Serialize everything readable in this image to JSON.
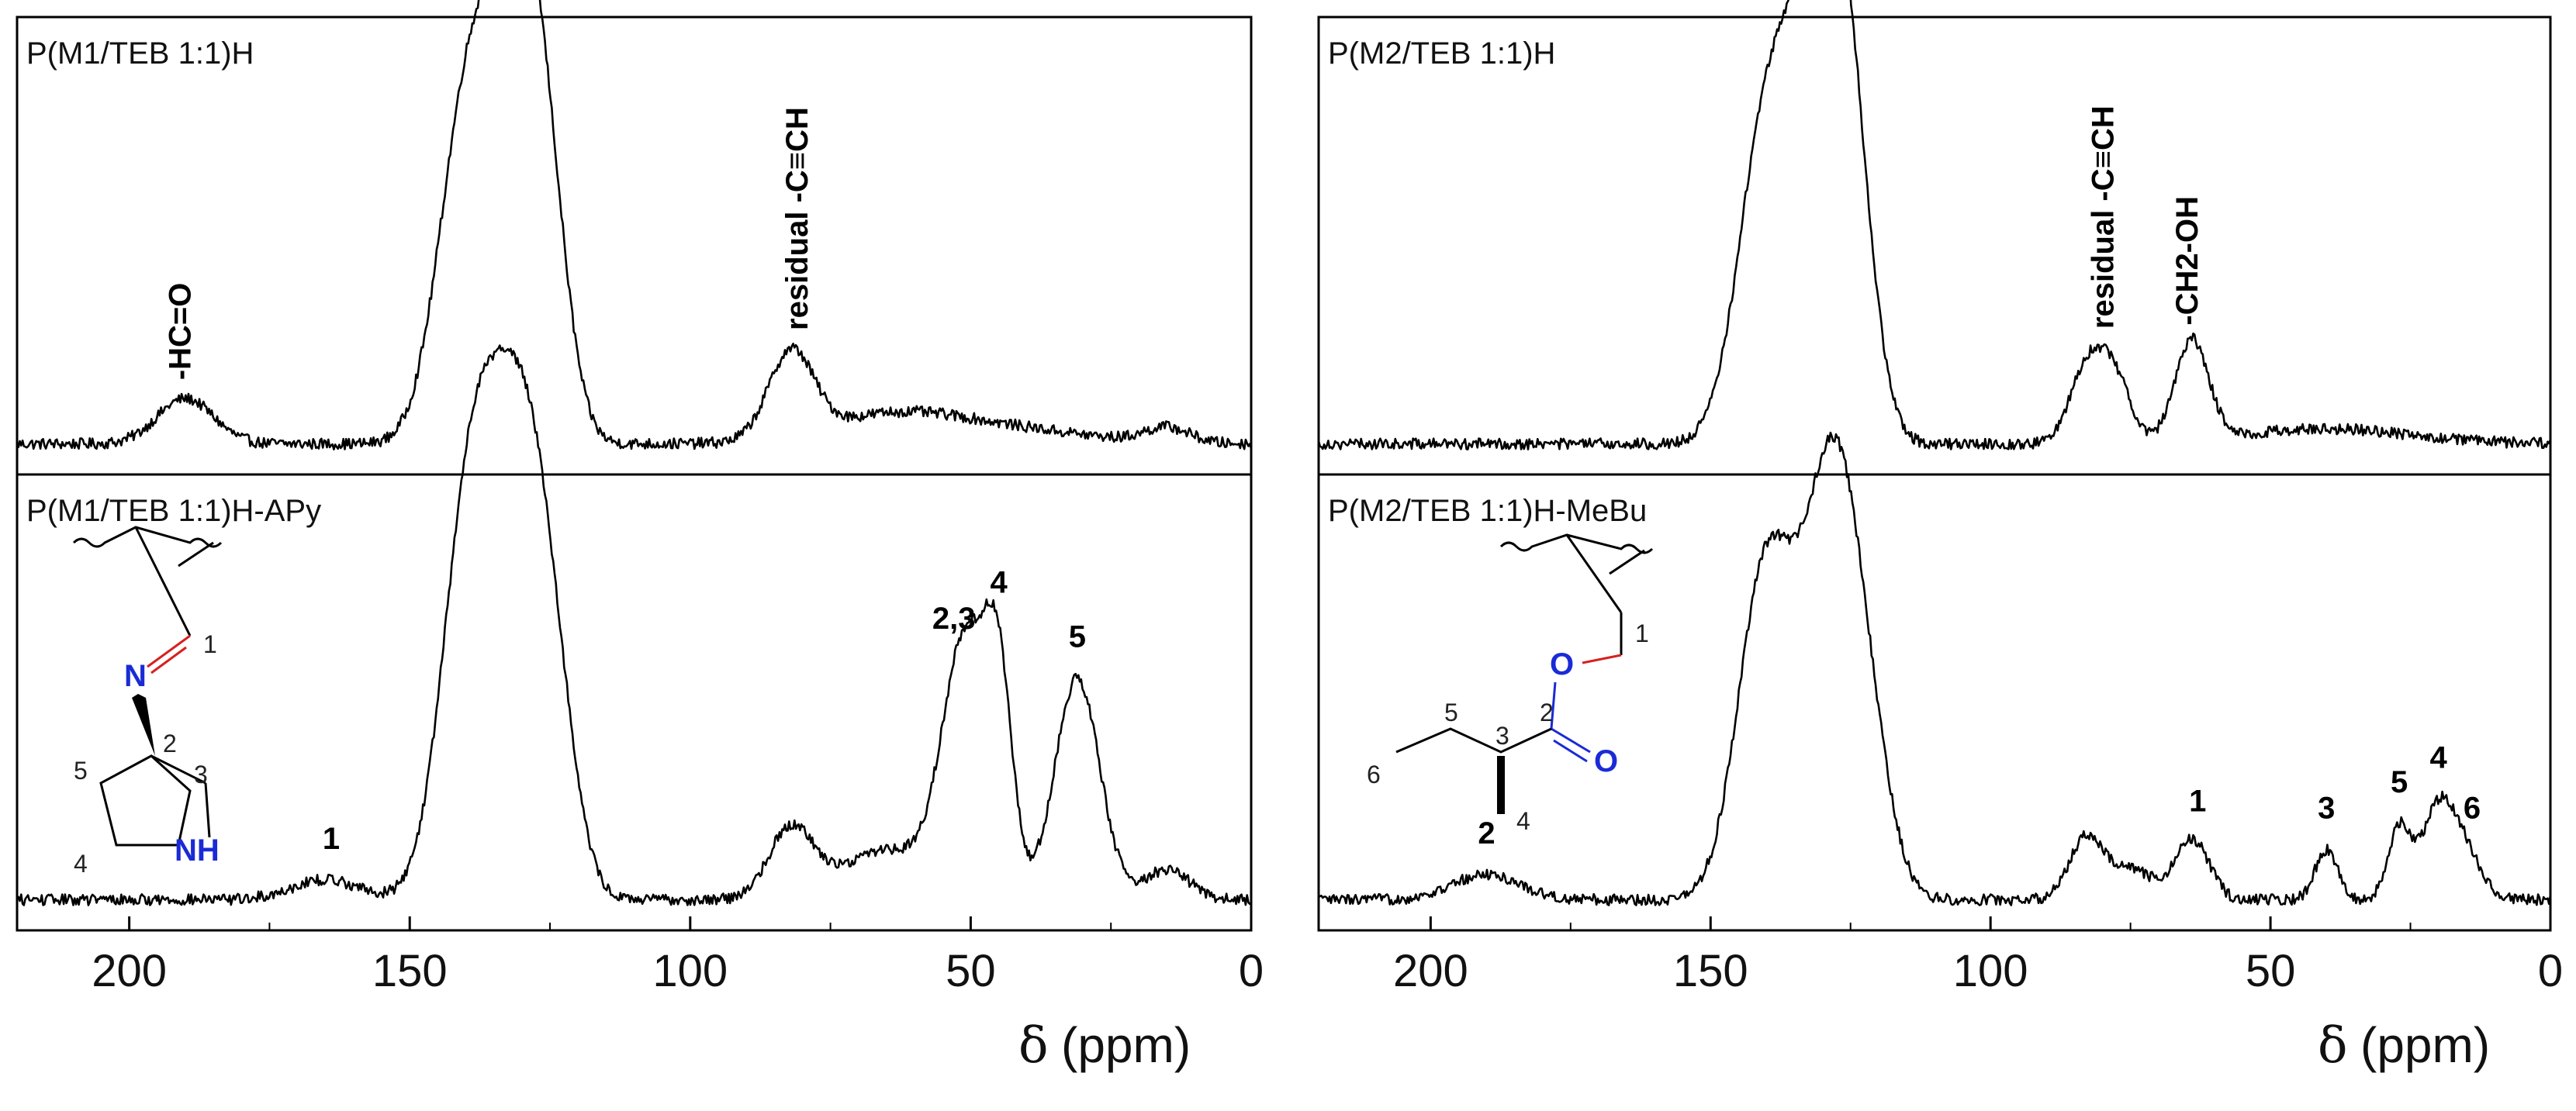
{
  "chart_data": [
    {
      "type": "line",
      "title": "",
      "xlabel_symbol": "δ",
      "xlabel_unit": "(ppm)",
      "xlim": [
        220,
        0
      ],
      "xticks": [
        200,
        150,
        100,
        50,
        0
      ],
      "grid": false,
      "subplots": [
        {
          "label": "P(M1/TEB 1:1)H",
          "peaks": [
            {
              "center": 190,
              "height": 0.09,
              "width": 5
            },
            {
              "center": 140,
              "height": 0.62,
              "width": 5
            },
            {
              "center": 131,
              "height": 0.78,
              "width": 5
            },
            {
              "center": 126,
              "height": 0.32,
              "width": 4
            },
            {
              "center": 82,
              "height": 0.17,
              "width": 4
            },
            {
              "center": 65,
              "height": 0.05,
              "width": 12
            },
            {
              "center": 45,
              "height": 0.03,
              "width": 15
            },
            {
              "center": 15,
              "height": 0.03,
              "width": 4
            }
          ],
          "baseline": 0.03,
          "annotations": [
            {
              "text": "-HC=O",
              "x": 191,
              "rotate": true
            },
            {
              "text": "residual -C≡CH",
              "x": 81,
              "rotate": true
            }
          ]
        },
        {
          "label": "P(M1/TEB 1:1)H-APy",
          "peaks": [
            {
              "center": 165,
              "height": 0.04,
              "width": 6
            },
            {
              "center": 139,
              "height": 0.8,
              "width": 5
            },
            {
              "center": 130,
              "height": 0.82,
              "width": 5
            },
            {
              "center": 124,
              "height": 0.22,
              "width": 4
            },
            {
              "center": 82,
              "height": 0.14,
              "width": 4
            },
            {
              "center": 65,
              "height": 0.1,
              "width": 8
            },
            {
              "center": 51,
              "height": 0.5,
              "width": 4
            },
            {
              "center": 45,
              "height": 0.38,
              "width": 2.5
            },
            {
              "center": 31,
              "height": 0.44,
              "width": 4
            },
            {
              "center": 15,
              "height": 0.06,
              "width": 4
            }
          ],
          "baseline": 0.03,
          "annotations": [
            {
              "text": "1",
              "x": 164
            },
            {
              "text": "2,3",
              "x": 53
            },
            {
              "text": "4",
              "x": 45
            },
            {
              "text": "5",
              "x": 31
            }
          ],
          "structure": {
            "atoms": [
              "N",
              "NH"
            ],
            "numbers": [
              "1",
              "2",
              "3",
              "4",
              "5"
            ]
          }
        }
      ]
    },
    {
      "type": "line",
      "title": "",
      "xlabel_symbol": "δ",
      "xlabel_unit": "(ppm)",
      "xlim": [
        220,
        0
      ],
      "xticks": [
        200,
        150,
        100,
        50,
        0
      ],
      "grid": false,
      "subplots": [
        {
          "label": "P(M2/TEB 1:1)H",
          "peaks": [
            {
              "center": 140,
              "height": 0.62,
              "width": 5
            },
            {
              "center": 130,
              "height": 0.88,
              "width": 5
            },
            {
              "center": 125,
              "height": 0.35,
              "width": 4
            },
            {
              "center": 83,
              "height": 0.14,
              "width": 3
            },
            {
              "center": 78,
              "height": 0.13,
              "width": 3
            },
            {
              "center": 64,
              "height": 0.2,
              "width": 3
            },
            {
              "center": 40,
              "height": 0.03,
              "width": 15
            }
          ],
          "baseline": 0.03,
          "annotations": [
            {
              "text": "residual -C≡CH",
              "x": 80,
              "rotate": true
            },
            {
              "text": "-CH2-OH",
              "x": 65,
              "rotate": true
            }
          ]
        },
        {
          "label": "P(M2/TEB 1:1)H-MeBu",
          "peaks": [
            {
              "center": 190,
              "height": 0.05,
              "width": 6
            },
            {
              "center": 140,
              "height": 0.66,
              "width": 5
            },
            {
              "center": 128,
              "height": 0.85,
              "width": 5
            },
            {
              "center": 121,
              "height": 0.15,
              "width": 4
            },
            {
              "center": 83,
              "height": 0.12,
              "width": 3
            },
            {
              "center": 75,
              "height": 0.06,
              "width": 4
            },
            {
              "center": 64,
              "height": 0.12,
              "width": 3
            },
            {
              "center": 40,
              "height": 0.1,
              "width": 2
            },
            {
              "center": 27,
              "height": 0.14,
              "width": 2
            },
            {
              "center": 20,
              "height": 0.18,
              "width": 3
            },
            {
              "center": 15,
              "height": 0.08,
              "width": 3
            }
          ],
          "baseline": 0.03,
          "annotations": [
            {
              "text": "2",
              "x": 190
            },
            {
              "text": "1",
              "x": 63
            },
            {
              "text": "3",
              "x": 40
            },
            {
              "text": "5",
              "x": 27
            },
            {
              "text": "4",
              "x": 20
            },
            {
              "text": "6",
              "x": 14
            }
          ],
          "structure": {
            "atoms": [
              "O",
              "O"
            ],
            "numbers": [
              "1",
              "2",
              "3",
              "4",
              "5",
              "6"
            ]
          }
        }
      ]
    }
  ]
}
